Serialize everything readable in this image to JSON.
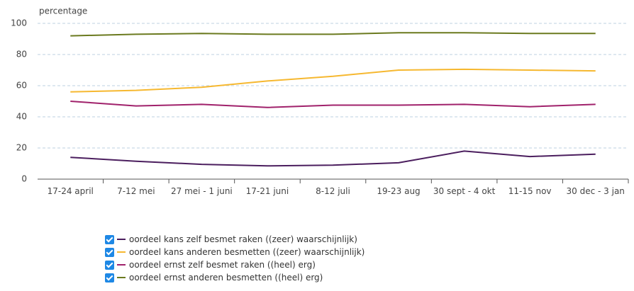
{
  "chart_data": {
    "type": "line",
    "y_label": "percentage",
    "categories": [
      "17-24 april",
      "7-12 mei",
      "27 mei - 1 juni",
      "17-21 juni",
      "8-12 juli",
      "19-23 aug",
      "30 sept - 4 okt",
      "11-15 nov",
      "30 dec - 3 jan"
    ],
    "series": [
      {
        "name": "oordeel kans zelf besmet raken ((zeer) waarschijnlijk)",
        "color": "#4b1e5e",
        "values": [
          14,
          11.5,
          9.5,
          8.5,
          9,
          10.5,
          18,
          14.5,
          16
        ]
      },
      {
        "name": "oordeel kans anderen besmetten ((zeer) waarschijnlijk)",
        "color": "#f6b830",
        "values": [
          56,
          57,
          59,
          63,
          66,
          70,
          70.5,
          70,
          69.5
        ]
      },
      {
        "name": "oordeel ernst zelf besmet raken ((heel) erg)",
        "color": "#a0216b",
        "values": [
          50,
          47,
          48,
          46,
          47.5,
          47.5,
          48,
          46.5,
          48
        ]
      },
      {
        "name": "oordeel ernst anderen besmetten ((heel) erg)",
        "color": "#6b7a1f",
        "values": [
          92,
          93,
          93.5,
          93,
          93,
          94,
          94,
          93.5,
          93.5
        ]
      }
    ],
    "ylim": [
      0,
      100
    ],
    "yticks": [
      0,
      20,
      40,
      60,
      80,
      100
    ],
    "grid": true
  }
}
